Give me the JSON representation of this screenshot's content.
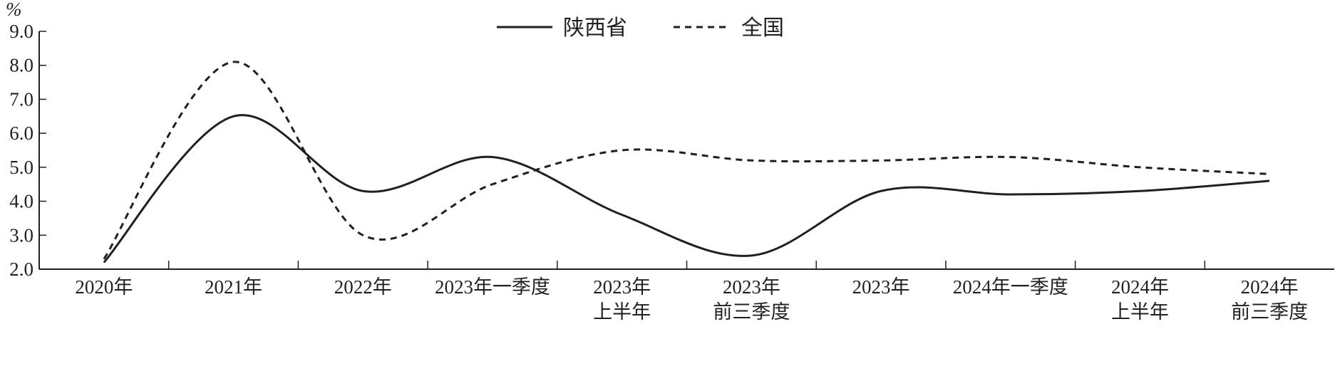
{
  "chart_data": {
    "type": "line",
    "ylabel": "%",
    "ylim": [
      2.0,
      9.0
    ],
    "yticks": [
      "2.0",
      "3.0",
      "4.0",
      "5.0",
      "6.0",
      "7.0",
      "8.0",
      "9.0"
    ],
    "categories": [
      [
        "2020年"
      ],
      [
        "2021年"
      ],
      [
        "2022年"
      ],
      [
        "2023年一季度"
      ],
      [
        "2023年",
        "上半年"
      ],
      [
        "2023年",
        "前三季度"
      ],
      [
        "2023年"
      ],
      [
        "2024年一季度"
      ],
      [
        "2024年",
        "上半年"
      ],
      [
        "2024年",
        "前三季度"
      ]
    ],
    "series": [
      {
        "name": "陕西省",
        "values": [
          2.2,
          6.5,
          4.3,
          5.3,
          3.6,
          2.4,
          4.3,
          4.2,
          4.3,
          4.6
        ],
        "color": "#231f20",
        "dash": "solid"
      },
      {
        "name": "全国",
        "values": [
          2.3,
          8.1,
          3.0,
          4.5,
          5.5,
          5.2,
          5.2,
          5.3,
          5.0,
          4.8
        ],
        "color": "#231f20",
        "dash": "dashed"
      }
    ],
    "legend_position": "top-center",
    "grid": false
  }
}
